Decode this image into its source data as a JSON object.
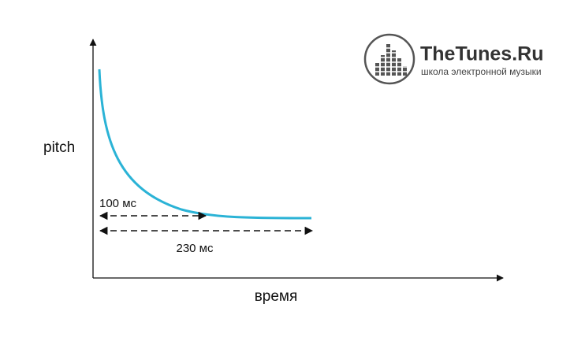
{
  "axes": {
    "y_label": "pitch",
    "x_label": "время"
  },
  "annotations": [
    {
      "label": "100 мс"
    },
    {
      "label": "230 мс"
    }
  ],
  "logo": {
    "name": "TheTunes.Ru",
    "tagline": "школа электронной музыки"
  }
}
